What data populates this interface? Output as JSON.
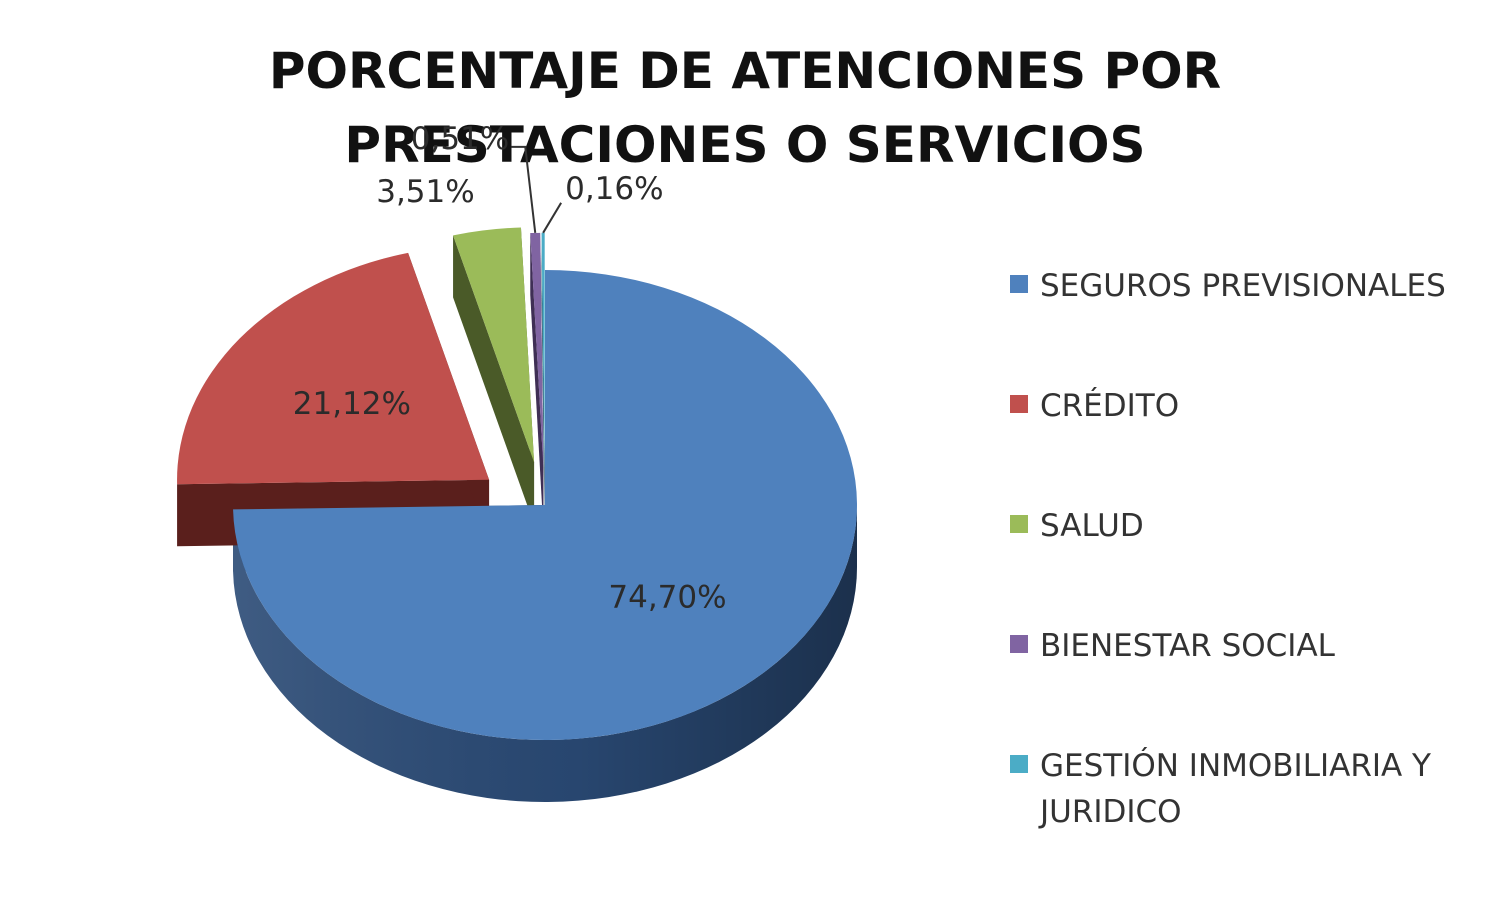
{
  "chart_data": {
    "type": "pie",
    "title": [
      "PORCENTAJE DE ATENCIONES POR",
      "PRESTACIONES O SERVICIOS"
    ],
    "legend_position": "right",
    "exploded": true,
    "three_d": true,
    "slices": [
      {
        "label": "SEGUROS PREVISIONALES",
        "value": 74.7,
        "display": "74,70%",
        "color": "#4f81bd",
        "side": "#2a4a75"
      },
      {
        "label": "CRÉDITO",
        "value": 21.12,
        "display": "21,12%",
        "color": "#c0504d",
        "side": "#5a1f1c"
      },
      {
        "label": "SALUD",
        "value": 3.51,
        "display": "3,51%",
        "color": "#9bbb59",
        "side": "#4a5a28"
      },
      {
        "label": "BIENESTAR SOCIAL",
        "value": 0.51,
        "display": "0,51%",
        "color": "#8064a2",
        "side": "#3f2f55"
      },
      {
        "label": "GESTIÓN INMOBILIARIA Y JURIDICO",
        "label_lines": [
          "GESTIÓN INMOBILIARIA Y",
          "JURIDICO"
        ],
        "value": 0.16,
        "display": "0,16%",
        "color": "#4bacc6",
        "side": "#21566a"
      }
    ]
  }
}
